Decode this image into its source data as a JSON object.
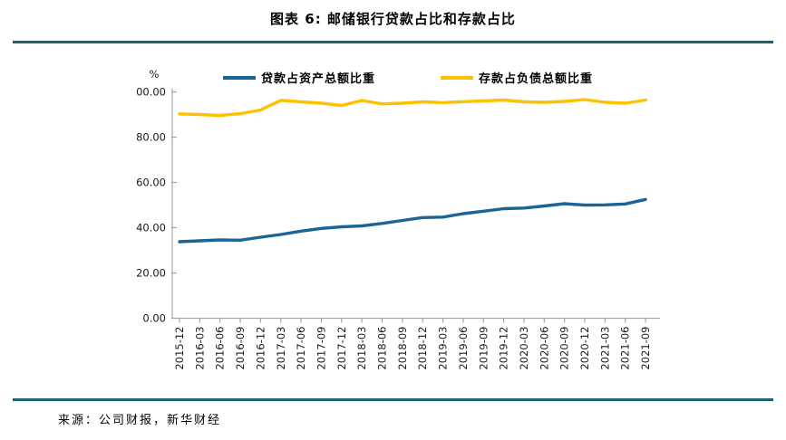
{
  "title": "图表 6: 邮储银行贷款占比和存款占比",
  "source": "来源：公司财报，新华财经",
  "colors": {
    "rule": "#1F6070",
    "axis": "#A6A6A6",
    "loans_line": "#1B6496",
    "deposits_line": "#FFC000",
    "text": "#000000"
  },
  "legend": {
    "items": [
      {
        "label": "贷款占资产总额比重",
        "color": "#1B6496"
      },
      {
        "label": "存款占负债总额比重",
        "color": "#FFC000"
      }
    ]
  },
  "chart_data": {
    "type": "line",
    "title": "图表 6: 邮储银行贷款占比和存款占比",
    "ylabel": "%",
    "xlabel": "",
    "ylim": [
      0,
      100
    ],
    "ytick_step": 20,
    "yticks": [
      "0.00",
      "20.00",
      "40.00",
      "60.00",
      "80.00",
      "100.00"
    ],
    "ytick_values": [
      0,
      20,
      40,
      60,
      80,
      100
    ],
    "grid": false,
    "legend_position": "top",
    "categories": [
      "2015-12",
      "2016-03",
      "2016-06",
      "2016-09",
      "2016-12",
      "2017-03",
      "2017-06",
      "2017-09",
      "2017-12",
      "2018-03",
      "2018-06",
      "2018-09",
      "2018-12",
      "2019-03",
      "2019-06",
      "2019-09",
      "2019-12",
      "2020-03",
      "2020-06",
      "2020-09",
      "2020-12",
      "2021-03",
      "2021-06",
      "2021-09"
    ],
    "series": [
      {
        "name": "贷款占资产总额比重",
        "color": "#1B6496",
        "values": [
          33.8,
          34.2,
          34.6,
          34.5,
          35.8,
          37.0,
          38.5,
          39.7,
          40.4,
          40.8,
          41.9,
          43.2,
          44.5,
          44.7,
          46.2,
          47.3,
          48.4,
          48.7,
          49.6,
          50.6,
          50.0,
          50.1,
          50.5,
          52.5
        ]
      },
      {
        "name": "存款占负债总额比重",
        "color": "#FFC000",
        "values": [
          90.3,
          90.0,
          89.6,
          90.4,
          92.0,
          96.3,
          95.6,
          95.0,
          94.0,
          96.2,
          94.7,
          95.0,
          95.6,
          95.3,
          95.7,
          96.0,
          96.4,
          95.6,
          95.4,
          95.8,
          96.6,
          95.4,
          95.0,
          96.4
        ]
      }
    ]
  }
}
